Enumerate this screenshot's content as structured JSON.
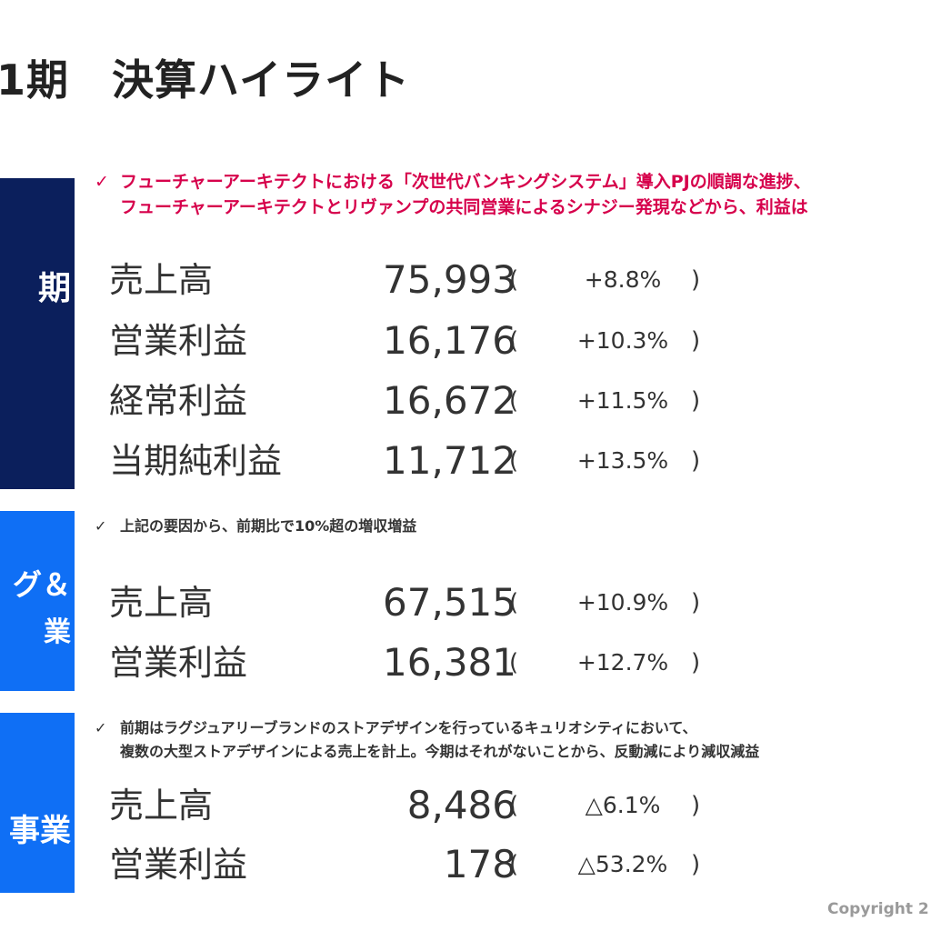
{
  "page_title": "期　決算ハイライト",
  "page_title_prefix": "1",
  "sections": [
    {
      "side_label": "期",
      "notes": [
        "フューチャーアーキテクトにおける「次世代バンキングシステム」導入PJの順調な進捗、",
        "フューチャーアーキテクトとリヴァンプの共同営業によるシナジー発現などから、利益は"
      ],
      "rows": [
        {
          "label": "売上高",
          "value": "75,993",
          "open": "(",
          "pct": "+8.8%",
          "close": ")"
        },
        {
          "label": "営業利益",
          "value": "16,176",
          "open": "(",
          "pct": "+10.3%",
          "close": ")"
        },
        {
          "label": "経常利益",
          "value": "16,672",
          "open": "(",
          "pct": "+11.5%",
          "close": ")"
        },
        {
          "label": "当期純利益",
          "value": "11,712",
          "open": "(",
          "pct": "+13.5%",
          "close": ")"
        }
      ]
    },
    {
      "side_label_line1": "グ＆",
      "side_label_line2": "業",
      "notes": [
        "上記の要因から、前期比で10%超の増収増益"
      ],
      "rows": [
        {
          "label": "売上高",
          "value": "67,515",
          "open": "(",
          "pct": "+10.9%",
          "close": ")"
        },
        {
          "label": "営業利益",
          "value": "16,381",
          "open": "(",
          "pct": "+12.7%",
          "close": ")"
        }
      ]
    },
    {
      "side_label": "事業",
      "notes": [
        "前期はラグジュアリーブランドのストアデザインを行っているキュリオシティにおいて、",
        "複数の大型ストアデザインによる売上を計上。今期はそれがないことから、反動減により減収減益"
      ],
      "rows": [
        {
          "label": "売上高",
          "value": "8,486",
          "open": "(",
          "pct": "△6.1%",
          "close": ")"
        },
        {
          "label": "営業利益",
          "value": "178",
          "open": "(",
          "pct": "△53.2%",
          "close": ")"
        }
      ]
    }
  ],
  "check_mark": "✓",
  "copyright": "Copyright 2",
  "colors": {
    "navy_block": "#0b1f5c",
    "blue_block": "#0f6ff5",
    "highlight_note": "#d6004b",
    "text": "#333333"
  }
}
